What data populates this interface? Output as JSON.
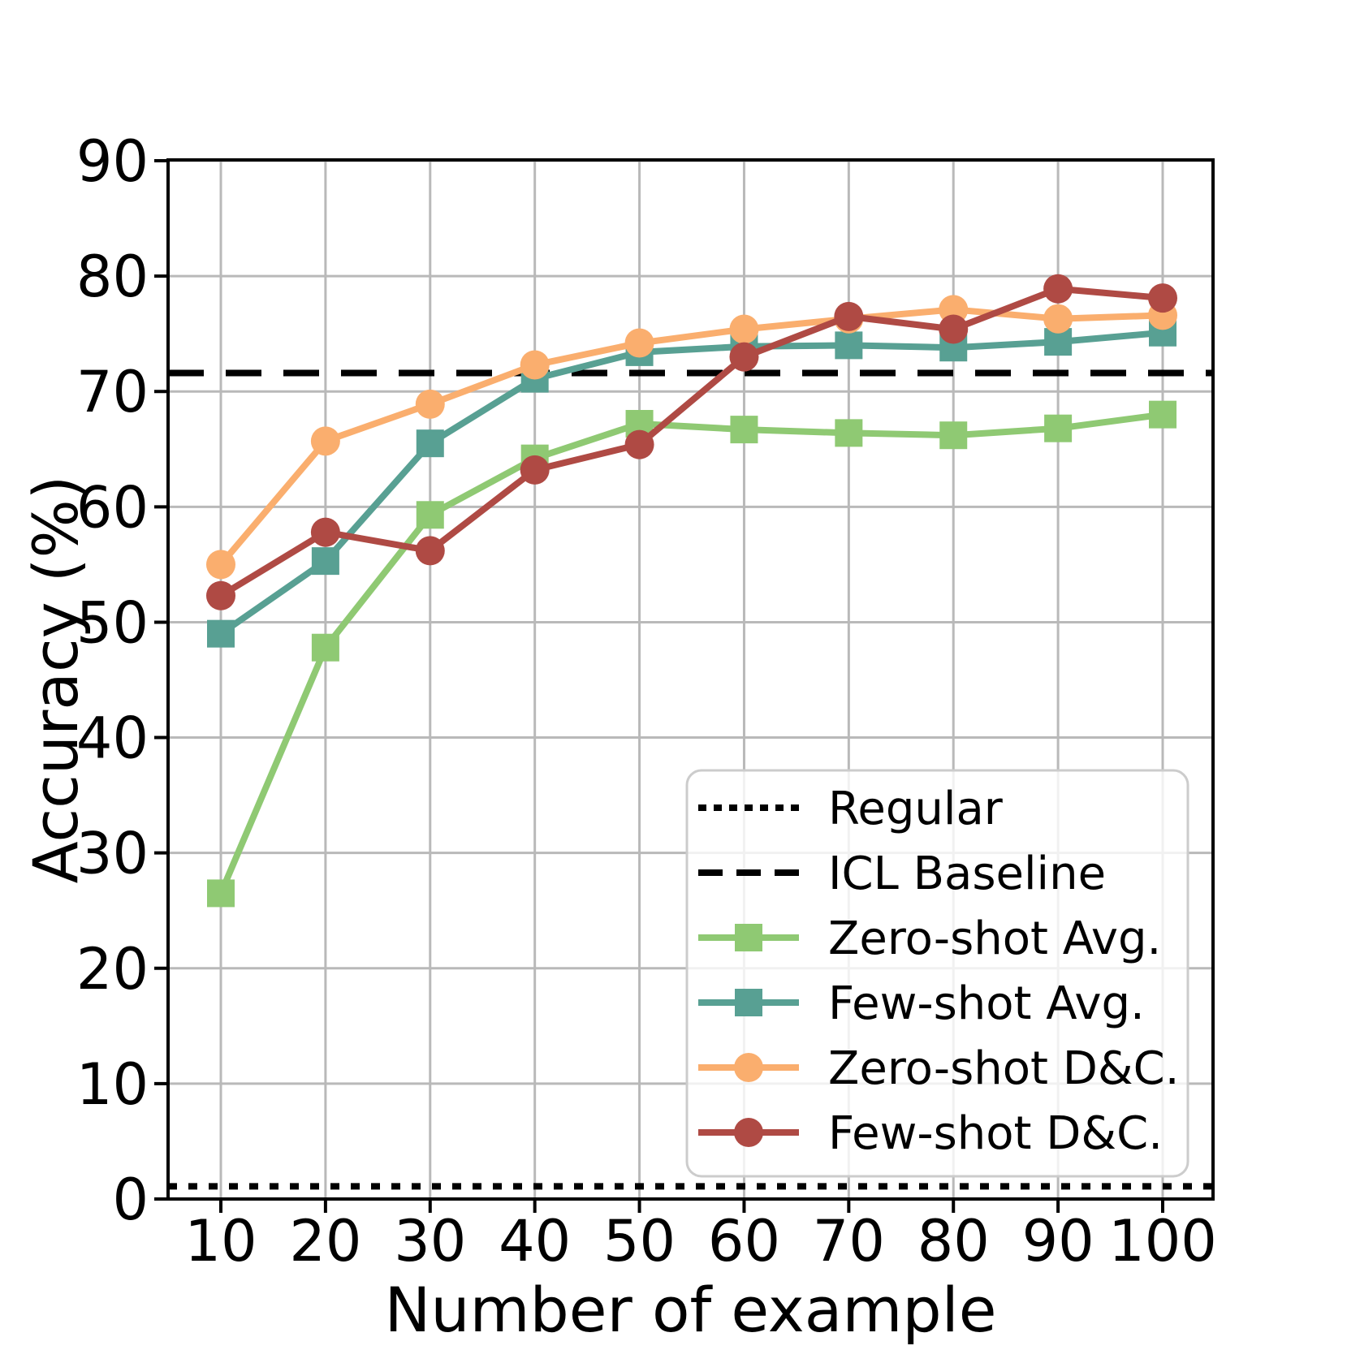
{
  "figure": {
    "background_color": "#ffffff",
    "text_color": "#000000",
    "grid_color": "#b9b9b9",
    "legend_border_color": "#cccccc"
  },
  "chart_data": {
    "type": "line",
    "title": "",
    "xlabel": "Number of example",
    "ylabel": "Accuracy (%)",
    "x": [
      10,
      20,
      30,
      40,
      50,
      60,
      70,
      80,
      90,
      100
    ],
    "xticks": [
      "10",
      "20",
      "30",
      "40",
      "50",
      "60",
      "70",
      "80",
      "90",
      "100"
    ],
    "yticks": [
      "0",
      "10",
      "20",
      "30",
      "40",
      "50",
      "60",
      "70",
      "80",
      "90"
    ],
    "ytick_values": [
      0,
      10,
      20,
      30,
      40,
      50,
      60,
      70,
      80,
      90
    ],
    "xlim": [
      4.9,
      104.9
    ],
    "ylim": [
      0,
      90
    ],
    "grid": true,
    "legend_position": "lower right",
    "baselines": [
      {
        "label": "Regular",
        "value": 1.1,
        "style": "dotted",
        "color": "#000000"
      },
      {
        "label": "ICL Baseline",
        "value": 71.6,
        "style": "dashed",
        "color": "#000000"
      }
    ],
    "series": [
      {
        "label": "Zero-shot Avg.",
        "marker": "square",
        "color": "#8FC973",
        "values": [
          26.5,
          47.8,
          59.3,
          64.2,
          67.2,
          66.7,
          66.4,
          66.2,
          66.8,
          68.0
        ]
      },
      {
        "label": "Few-shot Avg.",
        "marker": "square",
        "color": "#58A093",
        "values": [
          49.0,
          55.3,
          65.5,
          71.1,
          73.4,
          73.9,
          74.0,
          73.8,
          74.3,
          75.1
        ]
      },
      {
        "label": "Zero-shot D&C.",
        "marker": "circle",
        "color": "#FAAE6E",
        "values": [
          55.0,
          65.7,
          68.9,
          72.3,
          74.2,
          75.4,
          76.3,
          77.1,
          76.3,
          76.6
        ]
      },
      {
        "label": "Few-shot D&C.",
        "marker": "circle",
        "color": "#AF4A44",
        "values": [
          52.3,
          57.8,
          56.2,
          63.2,
          65.4,
          73.0,
          76.5,
          75.4,
          78.9,
          78.1
        ]
      }
    ],
    "legend_entries": [
      "Regular",
      "ICL Baseline",
      "Zero-shot Avg.",
      "Few-shot Avg.",
      "Zero-shot D&C.",
      "Few-shot D&C."
    ]
  }
}
